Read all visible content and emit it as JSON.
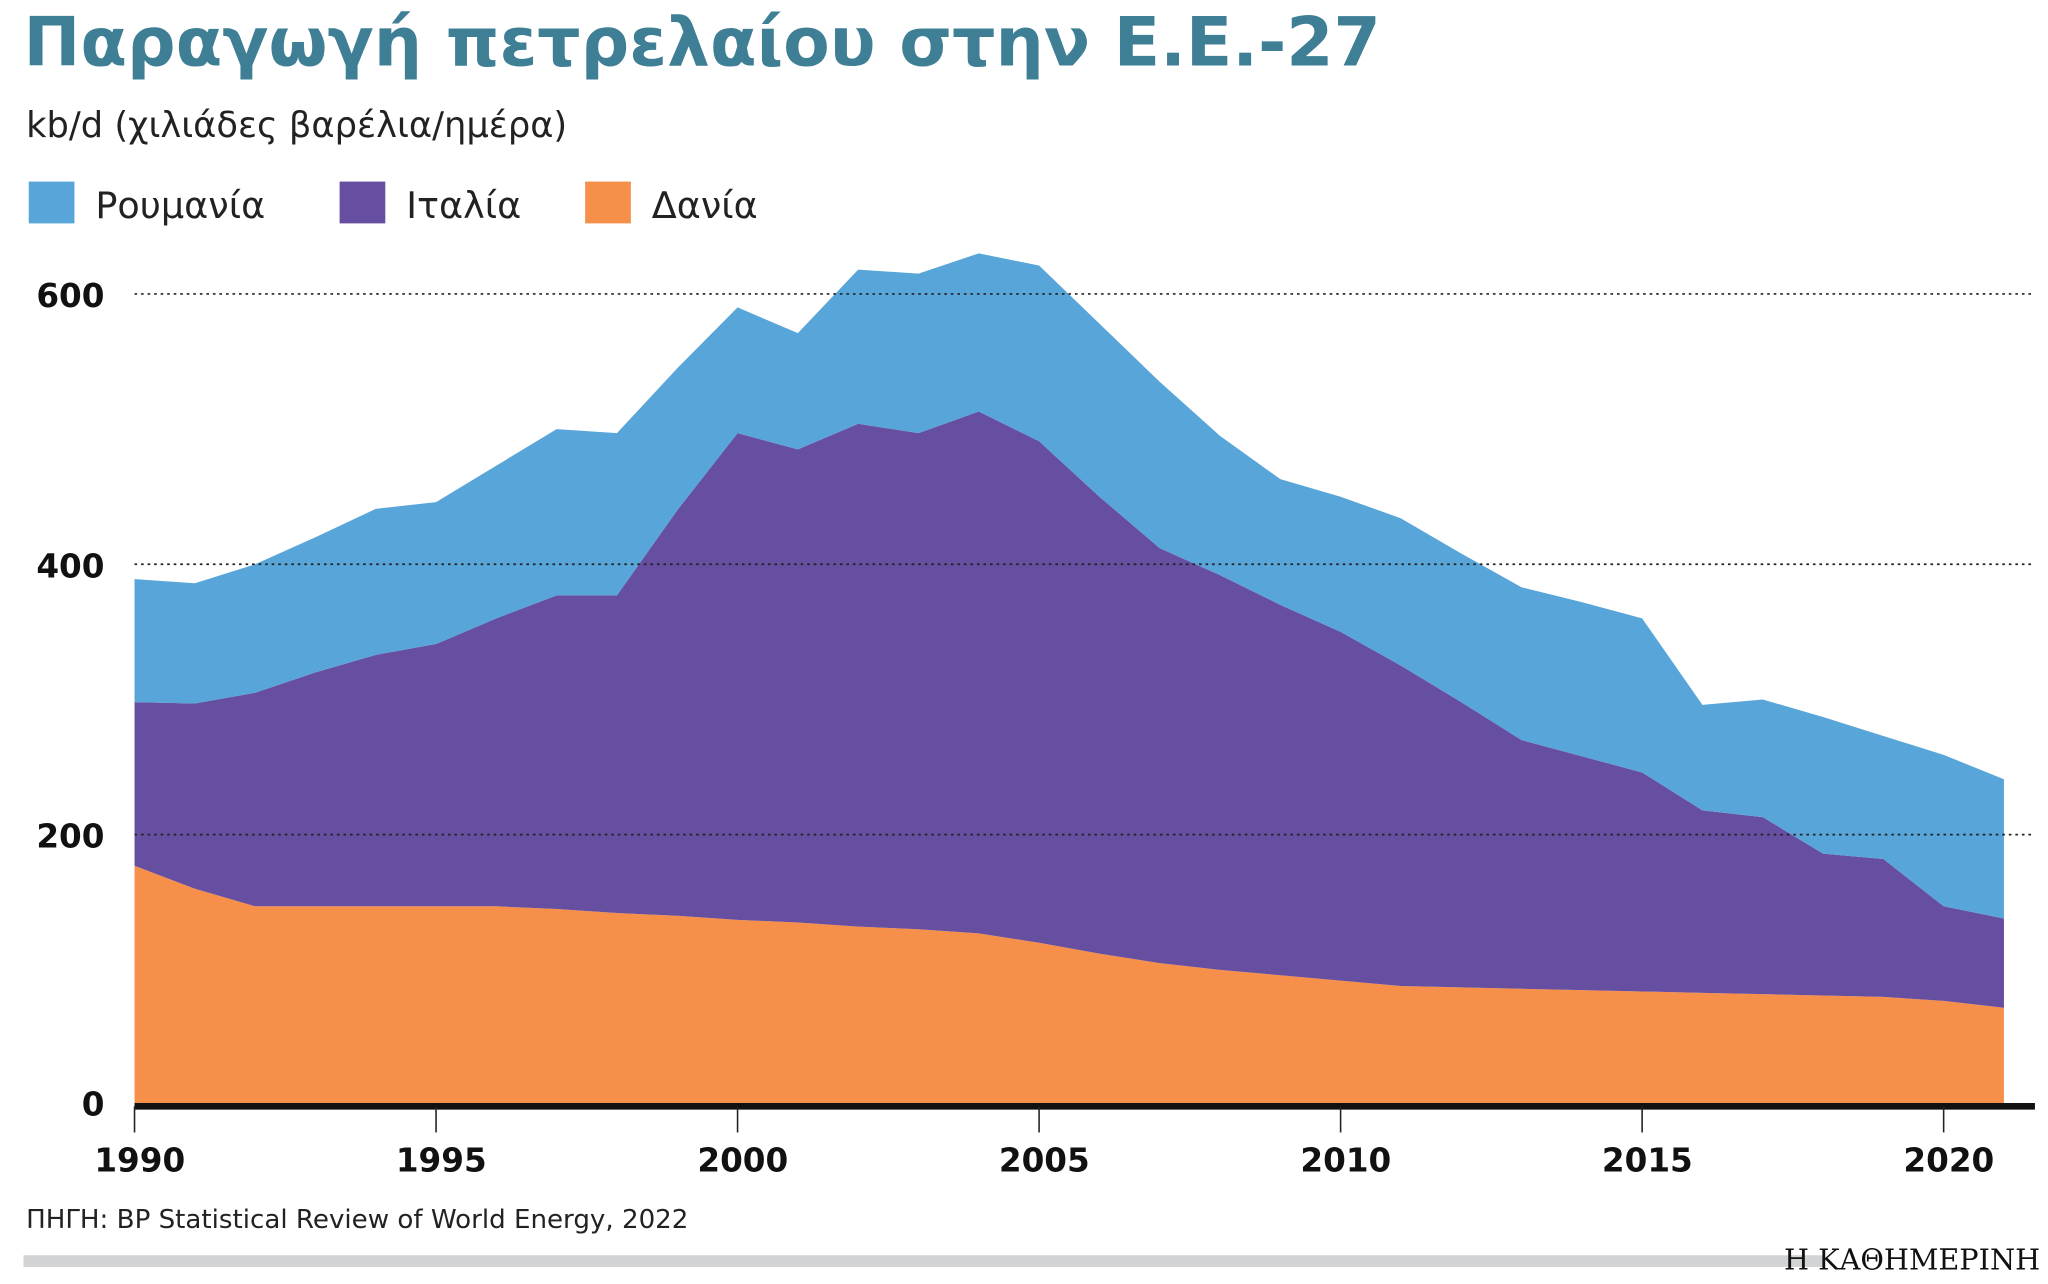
{
  "title": "Παραγωγή πετρελαίου στην Ε.Ε.-27",
  "subtitle": "kb/d (χιλιάδες βαρέλια/ημέρα)",
  "source": "ΠΗΓΗ: BP Statistical Review of World Energy, 2022",
  "brand": "Η ΚΑΘΗΜΕΡΙΝΗ",
  "chart_data": {
    "type": "area",
    "stacked": true,
    "ylim": [
      0,
      630
    ],
    "xlim": [
      1990,
      2021.5
    ],
    "y_ticks": [
      0,
      200,
      400,
      600
    ],
    "x_ticks": [
      1990,
      1995,
      2000,
      2005,
      2010,
      2015,
      2020
    ],
    "grid": "horizontal dotted",
    "legend_position": "top-left",
    "x": [
      1990,
      1991,
      1992,
      1993,
      1994,
      1995,
      1996,
      1997,
      1998,
      1999,
      2000,
      2001,
      2002,
      2003,
      2004,
      2005,
      2006,
      2007,
      2008,
      2009,
      2010,
      2011,
      2012,
      2013,
      2014,
      2015,
      2016,
      2017,
      2018,
      2019,
      2020,
      2021
    ],
    "series": [
      {
        "name": "Δανία",
        "color": "#f68f4a",
        "values": [
          177,
          160,
          147,
          147,
          147,
          147,
          147,
          145,
          142,
          140,
          137,
          135,
          132,
          130,
          127,
          120,
          112,
          105,
          100,
          96,
          92,
          88,
          87,
          86,
          85,
          84,
          83,
          82,
          81,
          80,
          77,
          72
        ]
      },
      {
        "name": "Ιταλία",
        "color": "#664fa0",
        "values": [
          121,
          137,
          158,
          173,
          186,
          194,
          213,
          232,
          235,
          300,
          360,
          350,
          372,
          367,
          386,
          371,
          338,
          307,
          292,
          274,
          258,
          237,
          211,
          184,
          173,
          162,
          135,
          131,
          105,
          102,
          70,
          66
        ]
      },
      {
        "name": "Ρουμανία",
        "color": "#58a5d9",
        "values": [
          91,
          89,
          95,
          100,
          108,
          105,
          113,
          123,
          120,
          105,
          93,
          86,
          114,
          118,
          117,
          130,
          128,
          123,
          103,
          93,
          100,
          109,
          110,
          113,
          114,
          114,
          78,
          87,
          101,
          91,
          112,
          103
        ]
      }
    ],
    "legend_order": [
      "Ρουμανία",
      "Ιταλία",
      "Δανία"
    ]
  }
}
